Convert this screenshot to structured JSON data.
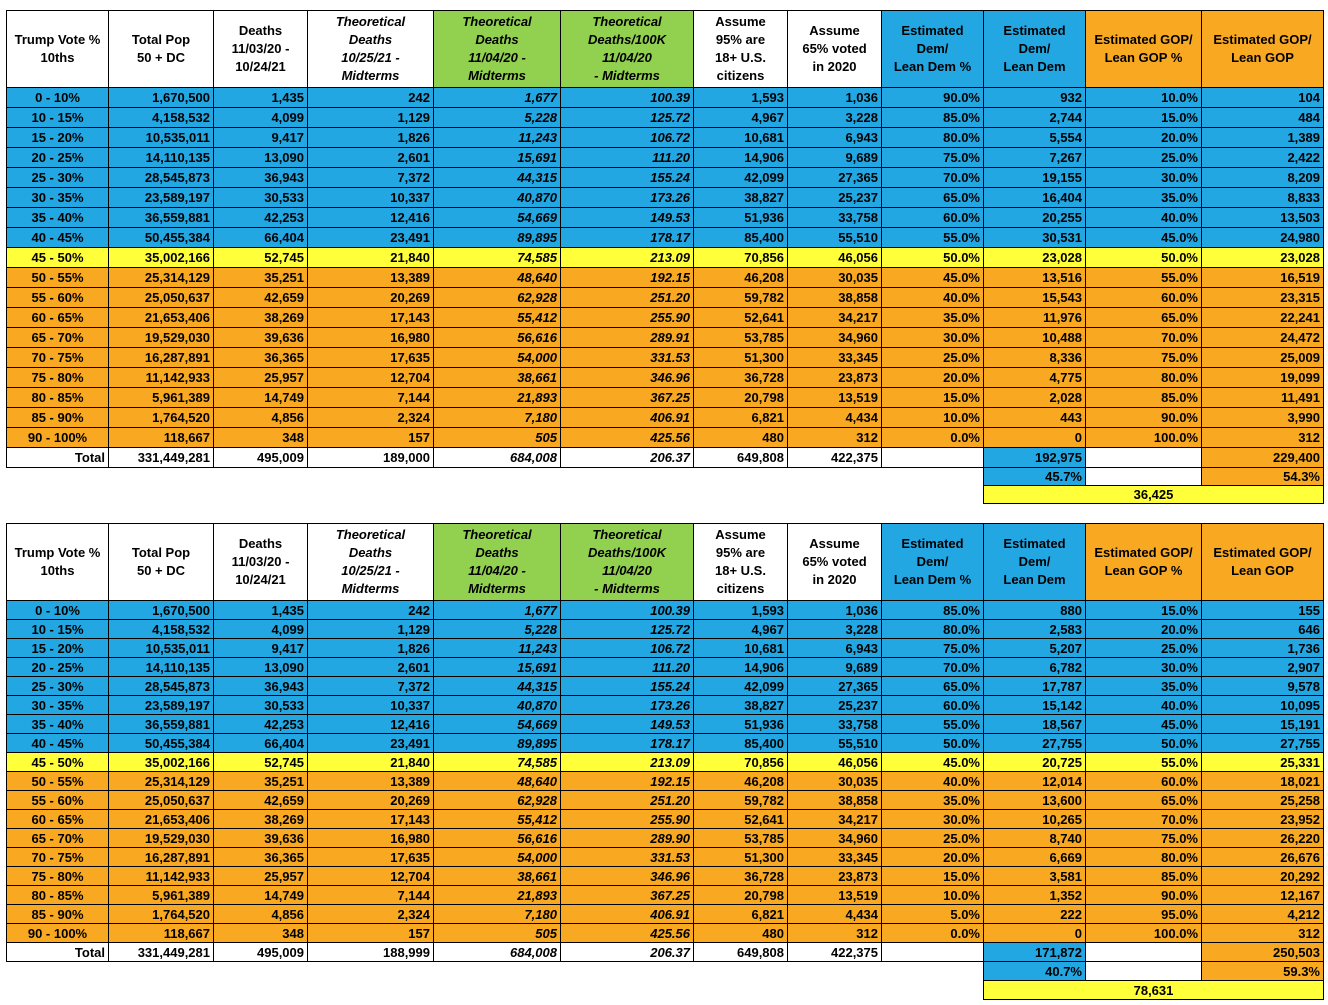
{
  "tables": [
    {
      "header": [
        [
          "Trump Vote %",
          "10ths"
        ],
        [
          "Total Pop",
          "50 + DC"
        ],
        [
          "Deaths",
          "11/03/20 -",
          "10/24/21"
        ],
        [
          "Theoretical",
          "Deaths",
          "10/25/21 -",
          "Midterms"
        ],
        [
          "Theoretical",
          "Deaths",
          "11/04/20 -",
          "Midterms"
        ],
        [
          "Theoretical",
          "Deaths/100K",
          "11/04/20",
          "- Midterms"
        ],
        [
          "Assume",
          "95% are",
          "18+ U.S.",
          "citizens"
        ],
        [
          "Assume",
          "65% voted",
          "in 2020"
        ],
        [
          "Estimated",
          "Dem/",
          "Lean Dem %"
        ],
        [
          "Estimated",
          "Dem/",
          "Lean Dem"
        ],
        [
          "Estimated GOP/",
          "Lean GOP %"
        ],
        [
          "Estimated GOP/",
          "Lean GOP"
        ]
      ],
      "rows": [
        [
          "0 - 10%",
          "1,670,500",
          "1,435",
          "242",
          "1,677",
          "100.39",
          "1,593",
          "1,036",
          "90.0%",
          "932",
          "10.0%",
          "104"
        ],
        [
          "10 - 15%",
          "4,158,532",
          "4,099",
          "1,129",
          "5,228",
          "125.72",
          "4,967",
          "3,228",
          "85.0%",
          "2,744",
          "15.0%",
          "484"
        ],
        [
          "15 - 20%",
          "10,535,011",
          "9,417",
          "1,826",
          "11,243",
          "106.72",
          "10,681",
          "6,943",
          "80.0%",
          "5,554",
          "20.0%",
          "1,389"
        ],
        [
          "20 - 25%",
          "14,110,135",
          "13,090",
          "2,601",
          "15,691",
          "111.20",
          "14,906",
          "9,689",
          "75.0%",
          "7,267",
          "25.0%",
          "2,422"
        ],
        [
          "25 - 30%",
          "28,545,873",
          "36,943",
          "7,372",
          "44,315",
          "155.24",
          "42,099",
          "27,365",
          "70.0%",
          "19,155",
          "30.0%",
          "8,209"
        ],
        [
          "30 - 35%",
          "23,589,197",
          "30,533",
          "10,337",
          "40,870",
          "173.26",
          "38,827",
          "25,237",
          "65.0%",
          "16,404",
          "35.0%",
          "8,833"
        ],
        [
          "35 - 40%",
          "36,559,881",
          "42,253",
          "12,416",
          "54,669",
          "149.53",
          "51,936",
          "33,758",
          "60.0%",
          "20,255",
          "40.0%",
          "13,503"
        ],
        [
          "40 - 45%",
          "50,455,384",
          "66,404",
          "23,491",
          "89,895",
          "178.17",
          "85,400",
          "55,510",
          "55.0%",
          "30,531",
          "45.0%",
          "24,980"
        ],
        [
          "45 - 50%",
          "35,002,166",
          "52,745",
          "21,840",
          "74,585",
          "213.09",
          "70,856",
          "46,056",
          "50.0%",
          "23,028",
          "50.0%",
          "23,028"
        ],
        [
          "50 - 55%",
          "25,314,129",
          "35,251",
          "13,389",
          "48,640",
          "192.15",
          "46,208",
          "30,035",
          "45.0%",
          "13,516",
          "55.0%",
          "16,519"
        ],
        [
          "55 - 60%",
          "25,050,637",
          "42,659",
          "20,269",
          "62,928",
          "251.20",
          "59,782",
          "38,858",
          "40.0%",
          "15,543",
          "60.0%",
          "23,315"
        ],
        [
          "60 - 65%",
          "21,653,406",
          "38,269",
          "17,143",
          "55,412",
          "255.90",
          "52,641",
          "34,217",
          "35.0%",
          "11,976",
          "65.0%",
          "22,241"
        ],
        [
          "65 - 70%",
          "19,529,030",
          "39,636",
          "16,980",
          "56,616",
          "289.91",
          "53,785",
          "34,960",
          "30.0%",
          "10,488",
          "70.0%",
          "24,472"
        ],
        [
          "70 - 75%",
          "16,287,891",
          "36,365",
          "17,635",
          "54,000",
          "331.53",
          "51,300",
          "33,345",
          "25.0%",
          "8,336",
          "75.0%",
          "25,009"
        ],
        [
          "75 - 80%",
          "11,142,933",
          "25,957",
          "12,704",
          "38,661",
          "346.96",
          "36,728",
          "23,873",
          "20.0%",
          "4,775",
          "80.0%",
          "19,099"
        ],
        [
          "80 - 85%",
          "5,961,389",
          "14,749",
          "7,144",
          "21,893",
          "367.25",
          "20,798",
          "13,519",
          "15.0%",
          "2,028",
          "85.0%",
          "11,491"
        ],
        [
          "85 - 90%",
          "1,764,520",
          "4,856",
          "2,324",
          "7,180",
          "406.91",
          "6,821",
          "4,434",
          "10.0%",
          "443",
          "90.0%",
          "3,990"
        ],
        [
          "90 - 100%",
          "118,667",
          "348",
          "157",
          "505",
          "425.56",
          "480",
          "312",
          "0.0%",
          "0",
          "100.0%",
          "312"
        ]
      ],
      "total": {
        "label": "Total",
        "values": [
          "331,449,281",
          "495,009",
          "189,000",
          "684,008",
          "206.37",
          "649,808",
          "422,375"
        ],
        "dem": "192,975",
        "gop": "229,400"
      },
      "shares": {
        "dem": "45.7%",
        "gop": "54.3%"
      },
      "margin": "36,425"
    },
    {
      "header": [
        [
          "Trump Vote %",
          "10ths"
        ],
        [
          "Total Pop",
          "50 + DC"
        ],
        [
          "Deaths",
          "11/03/20 -",
          "10/24/21"
        ],
        [
          "Theoretical",
          "Deaths",
          "10/25/21 -",
          "Midterms"
        ],
        [
          "Theoretical",
          "Deaths",
          "11/04/20 -",
          "Midterms"
        ],
        [
          "Theoretical",
          "Deaths/100K",
          "11/04/20",
          "- Midterms"
        ],
        [
          "Assume",
          "95% are",
          "18+ U.S.",
          "citizens"
        ],
        [
          "Assume",
          "65% voted",
          "in 2020"
        ],
        [
          "Estimated",
          "Dem/",
          "Lean Dem %"
        ],
        [
          "Estimated",
          "Dem/",
          "Lean Dem"
        ],
        [
          "Estimated GOP/",
          "Lean GOP %"
        ],
        [
          "Estimated GOP/",
          "Lean GOP"
        ]
      ],
      "rows": [
        [
          "0 - 10%",
          "1,670,500",
          "1,435",
          "242",
          "1,677",
          "100.39",
          "1,593",
          "1,036",
          "85.0%",
          "880",
          "15.0%",
          "155"
        ],
        [
          "10 - 15%",
          "4,158,532",
          "4,099",
          "1,129",
          "5,228",
          "125.72",
          "4,967",
          "3,228",
          "80.0%",
          "2,583",
          "20.0%",
          "646"
        ],
        [
          "15 - 20%",
          "10,535,011",
          "9,417",
          "1,826",
          "11,243",
          "106.72",
          "10,681",
          "6,943",
          "75.0%",
          "5,207",
          "25.0%",
          "1,736"
        ],
        [
          "20 - 25%",
          "14,110,135",
          "13,090",
          "2,601",
          "15,691",
          "111.20",
          "14,906",
          "9,689",
          "70.0%",
          "6,782",
          "30.0%",
          "2,907"
        ],
        [
          "25 - 30%",
          "28,545,873",
          "36,943",
          "7,372",
          "44,315",
          "155.24",
          "42,099",
          "27,365",
          "65.0%",
          "17,787",
          "35.0%",
          "9,578"
        ],
        [
          "30 - 35%",
          "23,589,197",
          "30,533",
          "10,337",
          "40,870",
          "173.26",
          "38,827",
          "25,237",
          "60.0%",
          "15,142",
          "40.0%",
          "10,095"
        ],
        [
          "35 - 40%",
          "36,559,881",
          "42,253",
          "12,416",
          "54,669",
          "149.53",
          "51,936",
          "33,758",
          "55.0%",
          "18,567",
          "45.0%",
          "15,191"
        ],
        [
          "40 - 45%",
          "50,455,384",
          "66,404",
          "23,491",
          "89,895",
          "178.17",
          "85,400",
          "55,510",
          "50.0%",
          "27,755",
          "50.0%",
          "27,755"
        ],
        [
          "45 - 50%",
          "35,002,166",
          "52,745",
          "21,840",
          "74,585",
          "213.09",
          "70,856",
          "46,056",
          "45.0%",
          "20,725",
          "55.0%",
          "25,331"
        ],
        [
          "50 - 55%",
          "25,314,129",
          "35,251",
          "13,389",
          "48,640",
          "192.15",
          "46,208",
          "30,035",
          "40.0%",
          "12,014",
          "60.0%",
          "18,021"
        ],
        [
          "55 - 60%",
          "25,050,637",
          "42,659",
          "20,269",
          "62,928",
          "251.20",
          "59,782",
          "38,858",
          "35.0%",
          "13,600",
          "65.0%",
          "25,258"
        ],
        [
          "60 - 65%",
          "21,653,406",
          "38,269",
          "17,143",
          "55,412",
          "255.90",
          "52,641",
          "34,217",
          "30.0%",
          "10,265",
          "70.0%",
          "23,952"
        ],
        [
          "65 - 70%",
          "19,529,030",
          "39,636",
          "16,980",
          "56,616",
          "289.90",
          "53,785",
          "34,960",
          "25.0%",
          "8,740",
          "75.0%",
          "26,220"
        ],
        [
          "70 - 75%",
          "16,287,891",
          "36,365",
          "17,635",
          "54,000",
          "331.53",
          "51,300",
          "33,345",
          "20.0%",
          "6,669",
          "80.0%",
          "26,676"
        ],
        [
          "75 - 80%",
          "11,142,933",
          "25,957",
          "12,704",
          "38,661",
          "346.96",
          "36,728",
          "23,873",
          "15.0%",
          "3,581",
          "85.0%",
          "20,292"
        ],
        [
          "80 - 85%",
          "5,961,389",
          "14,749",
          "7,144",
          "21,893",
          "367.25",
          "20,798",
          "13,519",
          "10.0%",
          "1,352",
          "90.0%",
          "12,167"
        ],
        [
          "85 - 90%",
          "1,764,520",
          "4,856",
          "2,324",
          "7,180",
          "406.91",
          "6,821",
          "4,434",
          "5.0%",
          "222",
          "95.0%",
          "4,212"
        ],
        [
          "90 - 100%",
          "118,667",
          "348",
          "157",
          "505",
          "425.56",
          "480",
          "312",
          "0.0%",
          "0",
          "100.0%",
          "312"
        ]
      ],
      "total": {
        "label": "Total",
        "values": [
          "331,449,281",
          "495,009",
          "188,999",
          "684,008",
          "206.37",
          "649,808",
          "422,375"
        ],
        "dem": "171,872",
        "gop": "250,503"
      },
      "shares": {
        "dem": "40.7%",
        "gop": "59.3%"
      },
      "margin": "78,631"
    }
  ]
}
